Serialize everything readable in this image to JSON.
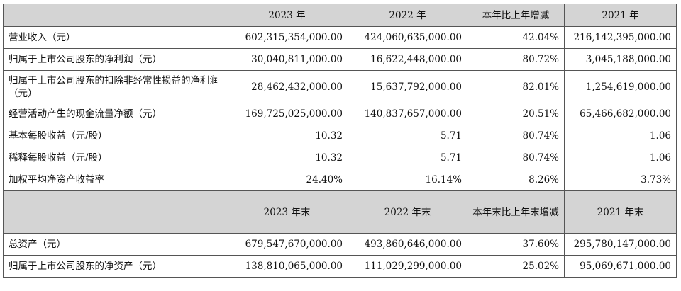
{
  "header1": [
    "",
    "2023 年",
    "2022 年",
    "本年比上年增减",
    "2021 年"
  ],
  "rows1": [
    {
      "label": "营业收入（元）",
      "values": [
        "602,315,354,000.00",
        "424,060,635,000.00",
        "42.04%",
        "216,142,395,000.00"
      ]
    },
    {
      "label": "归属于上市公司股东的净利润（元）",
      "values": [
        "30,040,811,000.00",
        "16,622,448,000.00",
        "80.72%",
        "3,045,188,000.00"
      ]
    },
    {
      "label": "归属于上市公司股东的扣除非经常性损益的净利润（元）",
      "values": [
        "28,462,432,000.00",
        "15,637,792,000.00",
        "82.01%",
        "1,254,619,000.00"
      ]
    },
    {
      "label": "经营活动产生的现金流量净额（元）",
      "values": [
        "169,725,025,000.00",
        "140,837,657,000.00",
        "20.51%",
        "65,466,682,000.00"
      ]
    },
    {
      "label": "基本每股收益（元/股）",
      "values": [
        "10.32",
        "5.71",
        "80.74%",
        "1.06"
      ]
    },
    {
      "label": "稀释每股收益（元/股）",
      "values": [
        "10.32",
        "5.71",
        "80.74%",
        "1.06"
      ]
    },
    {
      "label": "加权平均净资产收益率",
      "values": [
        "24.40%",
        "16.14%",
        "8.26%",
        "3.73%"
      ]
    }
  ],
  "header2": [
    "",
    "2023 年末",
    "2022 年末",
    "本年末比上年末增减",
    "2021 年末"
  ],
  "rows2": [
    {
      "label": "总资产（元）",
      "values": [
        "679,547,670,000.00",
        "493,860,646,000.00",
        "37.60%",
        "295,780,147,000.00"
      ]
    },
    {
      "label": "归属于上市公司股东的净资产（元）",
      "values": [
        "138,810,065,000.00",
        "111,029,299,000.00",
        "25.02%",
        "95,069,671,000.00"
      ]
    }
  ]
}
